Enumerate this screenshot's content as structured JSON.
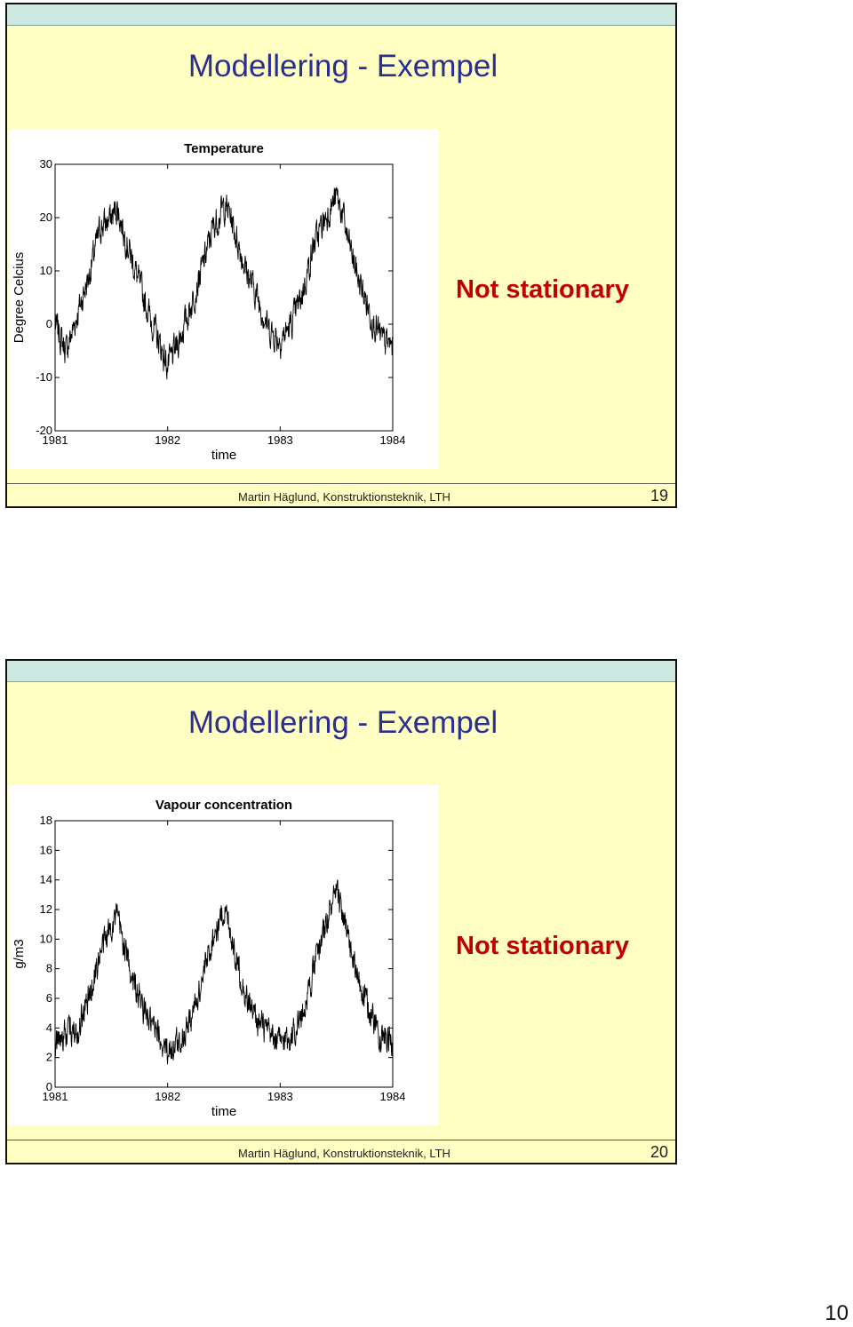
{
  "slides": [
    {
      "title": "Modellering - Exempel",
      "note": "Not stationary",
      "footer": "Martin Häglund, Konstruktionsteknik, LTH",
      "number": "19"
    },
    {
      "title": "Modellering - Exempel",
      "note": "Not stationary",
      "footer": "Martin Häglund, Konstruktionsteknik, LTH",
      "number": "20"
    }
  ],
  "page_number": "10",
  "colors": {
    "slide_background": "#ffffc4",
    "title": "#2a2f8f",
    "note": "#c00000",
    "top_bar": "#cde8e0"
  },
  "chart_data": [
    {
      "type": "line",
      "title": "Temperature",
      "xlabel": "time",
      "ylabel": "Degree Celcius",
      "xlim": [
        1981,
        1984
      ],
      "ylim": [
        -20,
        30
      ],
      "xticks": [
        "1981",
        "1982",
        "1983",
        "1984"
      ],
      "yticks": [
        "-20",
        "-10",
        "0",
        "10",
        "20",
        "30"
      ],
      "grid": false,
      "series": [
        {
          "x": [
            1981.0,
            1981.1,
            1981.2,
            1981.3,
            1981.4,
            1981.5,
            1981.55,
            1981.6,
            1981.7,
            1981.8,
            1981.9,
            1982.0,
            1982.1,
            1982.2,
            1982.3,
            1982.4,
            1982.5,
            1982.55,
            1982.6,
            1982.7,
            1982.8,
            1982.9,
            1983.0,
            1983.1,
            1983.2,
            1983.3,
            1983.4,
            1983.5,
            1983.55,
            1983.6,
            1983.7,
            1983.8,
            1983.9,
            1984.0
          ],
          "y": [
            0,
            -5,
            2,
            9,
            18,
            20,
            22,
            18,
            11,
            4,
            -2,
            -8,
            -3,
            3,
            10,
            18,
            22,
            21,
            17,
            10,
            5,
            -1,
            -3,
            0,
            6,
            15,
            20,
            24,
            21,
            16,
            8,
            2,
            -3,
            -4
          ]
        }
      ]
    },
    {
      "type": "line",
      "title": "Vapour concentration",
      "xlabel": "time",
      "ylabel": "g/m3",
      "xlim": [
        1981,
        1984
      ],
      "ylim": [
        0,
        18
      ],
      "xticks": [
        "1981",
        "1982",
        "1983",
        "1984"
      ],
      "yticks": [
        "0",
        "2",
        "4",
        "6",
        "8",
        "10",
        "12",
        "14",
        "16",
        "18"
      ],
      "grid": false,
      "series": [
        {
          "x": [
            1981.0,
            1981.1,
            1981.2,
            1981.3,
            1981.4,
            1981.5,
            1981.55,
            1981.6,
            1981.7,
            1981.8,
            1981.9,
            1982.0,
            1982.1,
            1982.2,
            1982.3,
            1982.4,
            1982.5,
            1982.55,
            1982.6,
            1982.7,
            1982.8,
            1982.9,
            1983.0,
            1983.1,
            1983.2,
            1983.3,
            1983.4,
            1983.5,
            1983.55,
            1983.6,
            1983.7,
            1983.8,
            1983.9,
            1984.0
          ],
          "y": [
            3,
            3.5,
            4,
            6,
            9,
            11,
            11.5,
            10,
            7,
            5,
            3.5,
            2.5,
            3,
            4.5,
            7,
            10,
            12,
            11,
            9,
            6,
            4.5,
            3.5,
            3,
            3.5,
            5,
            8,
            11,
            13,
            12,
            10,
            7,
            5,
            3.5,
            3
          ]
        }
      ]
    }
  ]
}
